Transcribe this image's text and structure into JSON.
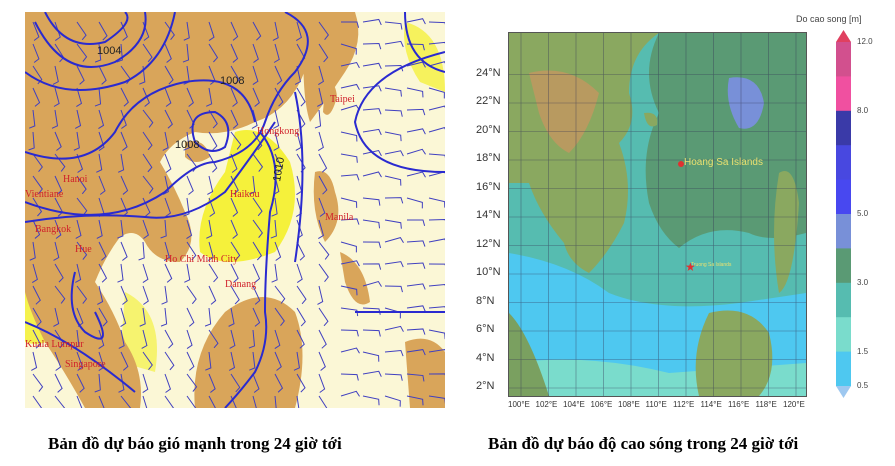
{
  "left_map": {
    "caption": "Bản đồ dự báo gió mạnh trong 24 giờ tới",
    "isobar_labels": [
      "1004",
      "1008",
      "1008",
      "1010"
    ],
    "cities": [
      "Taipei",
      "Hongkong",
      "Hanoi",
      "Haikou",
      "Vientiane",
      "Bangkok",
      "Ho Chi Minh City",
      "Manila",
      "Kuala Lumpur",
      "Singapore",
      "Hue",
      "Danang"
    ],
    "colors": {
      "land": "#d9a55a",
      "sea": "#fbf7d6",
      "strong_wind": "#f4f02a",
      "isobar": "#2a2ad0",
      "barb": "#4040c0"
    }
  },
  "right_map": {
    "caption": "Bản đồ dự báo độ cao sóng trong 24 giờ tới",
    "lat_ticks": [
      "2°N",
      "4°N",
      "6°N",
      "8°N",
      "10°N",
      "12°N",
      "14°N",
      "16°N",
      "18°N",
      "20°N",
      "22°N",
      "24°N"
    ],
    "lon_ticks": [
      "100°E",
      "102°E",
      "104°E",
      "106°E",
      "108°E",
      "110°E",
      "112°E",
      "114°E",
      "116°E",
      "118°E",
      "120°E"
    ],
    "labels": [
      "Hoang Sa Islands",
      "Truong Sa Islands"
    ],
    "colorbar": {
      "title": "Do cao song [m]",
      "ticks": [
        "12.0",
        "8.0",
        "5.0",
        "3.0",
        "1.5",
        "0.5"
      ],
      "colors": [
        "#d2508e",
        "#f050a0",
        "#3a3aa8",
        "#4848e0",
        "#4848f0",
        "#7890d8",
        "#5a9a74",
        "#56bcb0",
        "#7adccc",
        "#4ec8f0"
      ],
      "under_color": "#9ec8f0",
      "over_color": "#e04060"
    }
  }
}
